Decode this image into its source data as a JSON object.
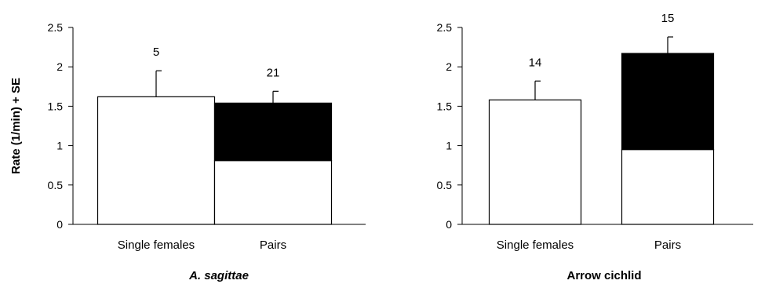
{
  "chart_data": [
    {
      "type": "bar",
      "title": "A. sagittae",
      "title_italic": true,
      "ylabel": "Rate (1/min) + SE",
      "ylim": [
        0,
        2.5
      ],
      "yticks": [
        "0",
        "0.5",
        "1",
        "1.5",
        "2",
        "2.5"
      ],
      "categories": [
        "Single females",
        "Pairs"
      ],
      "series": [
        {
          "color": "#ffffff",
          "values": [
            1.62,
            0.81
          ]
        },
        {
          "color": "#000000",
          "values": [
            0,
            0.73
          ]
        }
      ],
      "error_top": [
        1.95,
        1.69
      ],
      "sample_sizes": [
        "5",
        "21"
      ]
    },
    {
      "type": "bar",
      "title": "Arrow cichlid",
      "title_italic": false,
      "ylabel": "",
      "ylim": [
        0,
        2.5
      ],
      "yticks": [
        "0",
        "0.5",
        "1",
        "1.5",
        "2",
        "2.5"
      ],
      "categories": [
        "Single females",
        "Pairs"
      ],
      "series": [
        {
          "color": "#ffffff",
          "values": [
            1.58,
            0.95
          ]
        },
        {
          "color": "#000000",
          "values": [
            0,
            1.22
          ]
        }
      ],
      "error_top": [
        1.82,
        2.38
      ],
      "sample_sizes": [
        "14",
        "15"
      ]
    }
  ]
}
